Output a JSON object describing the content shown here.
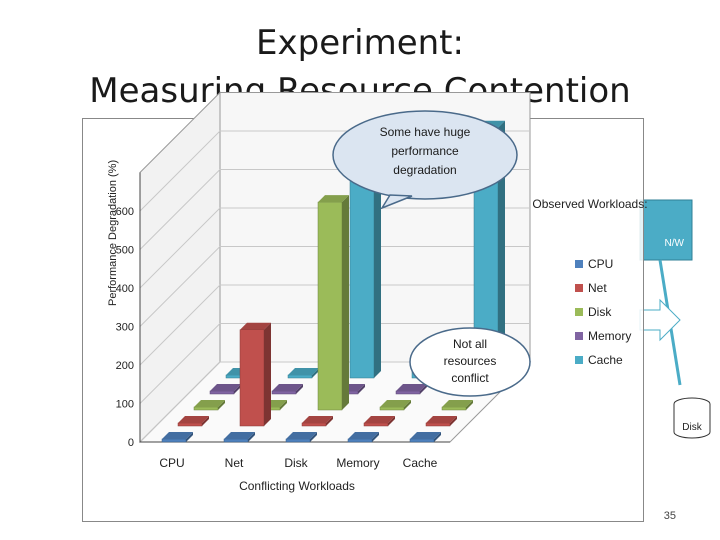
{
  "slide": {
    "title_line1": "Experiment:",
    "title_line2": "Measuring Resource Contention",
    "page_number": "35"
  },
  "callouts": {
    "top": "Some have huge performance degradation",
    "middle": "Not all resources conflict"
  },
  "diagram": {
    "nw_label": "N/W",
    "disk_label": "Disk"
  },
  "colors": {
    "CPU": "#4f81bd",
    "Net": "#c0504d",
    "Disk": "#9bbb59",
    "Memory": "#8064a2",
    "Cache": "#4bacc6"
  },
  "chart_data": {
    "type": "bar",
    "subtype": "3d-clustered",
    "ylabel": "Performance Degradation (%)",
    "xlabel": "Conflicting Workloads",
    "legend_title": "Observed Workloads:",
    "legend_position": "right",
    "ylim": [
      0,
      700
    ],
    "yticks": [
      0,
      100,
      200,
      300,
      400,
      500,
      600
    ],
    "categories": [
      "CPU",
      "Net",
      "Disk",
      "Memory",
      "Cache"
    ],
    "series": [
      {
        "name": "CPU",
        "values": [
          0,
          0,
          0,
          0,
          0
        ]
      },
      {
        "name": "Net",
        "values": [
          0,
          250,
          0,
          0,
          0
        ]
      },
      {
        "name": "Disk",
        "values": [
          0,
          0,
          540,
          0,
          0
        ]
      },
      {
        "name": "Memory",
        "values": [
          0,
          0,
          0,
          0,
          0
        ]
      },
      {
        "name": "Cache",
        "values": [
          0,
          0,
          600,
          60,
          650
        ]
      }
    ],
    "grid": true
  }
}
